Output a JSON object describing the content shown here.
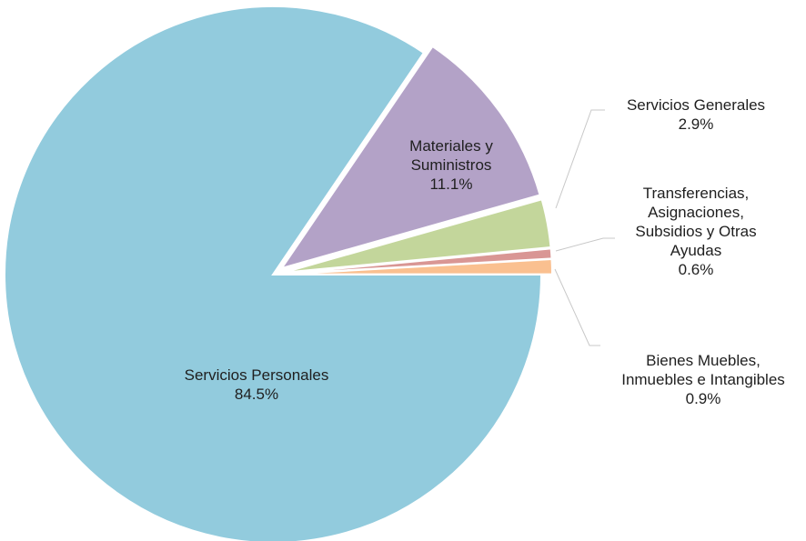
{
  "chart_data": {
    "type": "pie",
    "slices": [
      {
        "name": "Servicios Personales",
        "label_lines": [
          "Servicios  Personales"
        ],
        "value": 84.5,
        "value_label": "84.5%",
        "color": "#92CBDD",
        "exploded": false,
        "label_placement": "inside"
      },
      {
        "name": "Materiales y Suministros",
        "label_lines": [
          "Materiales  y",
          "Suministros"
        ],
        "value": 11.1,
        "value_label": "11.1%",
        "color": "#B3A2C7",
        "exploded": true,
        "label_placement": "inside"
      },
      {
        "name": "Servicios Generales",
        "label_lines": [
          "Servicios  Generales"
        ],
        "value": 2.9,
        "value_label": "2.9%",
        "color": "#C3D69B",
        "exploded": true,
        "label_placement": "outside"
      },
      {
        "name": "Transferencias, Asignaciones, Subsidios y Otras Ayudas",
        "label_lines": [
          "Transferencias,",
          "Asignaciones,",
          "Subsidios  y Otras",
          "Ayudas"
        ],
        "value": 0.6,
        "value_label": "0.6%",
        "color": "#D99694",
        "exploded": true,
        "label_placement": "outside"
      },
      {
        "name": "Bienes Muebles, Inmuebles e Intangibles",
        "label_lines": [
          "Bienes  Muebles,",
          "Inmuebles  e Intangibles"
        ],
        "value": 0.9,
        "value_label": "0.9%",
        "color": "#FAC090",
        "exploded": true,
        "label_placement": "outside"
      }
    ],
    "legend": "none"
  }
}
